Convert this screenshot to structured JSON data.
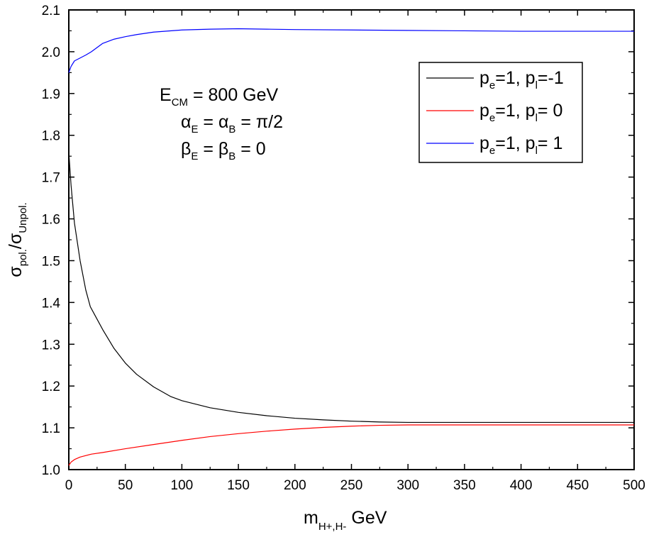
{
  "chart_data": {
    "type": "line",
    "title": "",
    "xlabel": {
      "main": "m",
      "sub": "H+,H-",
      "suffix": " GeV"
    },
    "ylabel": {
      "s1": "σ",
      "sub1": "pol.",
      "mid": "/σ",
      "sub2": "Unpol."
    },
    "xlim": [
      0,
      500
    ],
    "ylim": [
      1.0,
      2.1
    ],
    "x_ticks": [
      "0",
      "50",
      "100",
      "150",
      "200",
      "250",
      "300",
      "350",
      "400",
      "450",
      "500"
    ],
    "y_ticks": [
      "1.0",
      "1.1",
      "1.2",
      "1.3",
      "1.4",
      "1.5",
      "1.6",
      "1.7",
      "1.8",
      "1.9",
      "2.0",
      "2.1"
    ],
    "grid": false,
    "legend_position": "top-right",
    "annotation": [
      {
        "a": "E",
        "a_sub": "CM",
        "rest": " = 800 GeV"
      },
      {
        "a": "α",
        "a_sub": "E",
        "mid": " = α",
        "b_sub": "B",
        "rest": " = π/2"
      },
      {
        "a": "β",
        "a_sub": "E",
        "mid": " = β",
        "b_sub": "B",
        "rest": " = 0"
      }
    ],
    "series": [
      {
        "name": "pe=1, pl=-1",
        "legend": {
          "p": "p",
          "s1": "e",
          "mid": "=1, p",
          "s2": "l",
          "val": "=-1"
        },
        "color": "#000000",
        "x": [
          0,
          2,
          5,
          10,
          15,
          19,
          25,
          30,
          40,
          50,
          60,
          75,
          90,
          100,
          125,
          150,
          175,
          200,
          225,
          250,
          275,
          300,
          350,
          400,
          450,
          500
        ],
        "y": [
          1.76,
          1.68,
          1.59,
          1.5,
          1.43,
          1.39,
          1.36,
          1.335,
          1.29,
          1.255,
          1.228,
          1.198,
          1.175,
          1.165,
          1.148,
          1.137,
          1.129,
          1.123,
          1.119,
          1.116,
          1.114,
          1.113,
          1.113,
          1.113,
          1.113,
          1.113
        ]
      },
      {
        "name": "pe=1, pl= 0",
        "legend": {
          "p": "p",
          "s1": "e",
          "mid": "=1, p",
          "s2": "l",
          "val": "= 0"
        },
        "color": "#ff0000",
        "x": [
          0,
          2,
          5,
          10,
          20,
          30,
          50,
          75,
          100,
          125,
          150,
          175,
          200,
          225,
          250,
          275,
          300,
          325,
          350,
          400,
          450,
          500
        ],
        "y": [
          1.01,
          1.018,
          1.024,
          1.03,
          1.037,
          1.041,
          1.05,
          1.06,
          1.07,
          1.079,
          1.086,
          1.092,
          1.097,
          1.101,
          1.104,
          1.106,
          1.107,
          1.107,
          1.107,
          1.107,
          1.107,
          1.107
        ]
      },
      {
        "name": "pe=1, pl= 1",
        "legend": {
          "p": "p",
          "s1": "e",
          "mid": "=1, p",
          "s2": "l",
          "val": "= 1"
        },
        "color": "#0000ff",
        "x": [
          0,
          2,
          5,
          10,
          15,
          20,
          25,
          30,
          40,
          50,
          60,
          75,
          100,
          125,
          150,
          175,
          200,
          250,
          300,
          350,
          400,
          450,
          500
        ],
        "y": [
          1.95,
          1.965,
          1.978,
          1.985,
          1.992,
          2.0,
          2.01,
          2.02,
          2.03,
          2.036,
          2.041,
          2.047,
          2.052,
          2.054,
          2.055,
          2.054,
          2.053,
          2.052,
          2.051,
          2.05,
          2.049,
          2.049,
          2.049
        ]
      }
    ]
  }
}
